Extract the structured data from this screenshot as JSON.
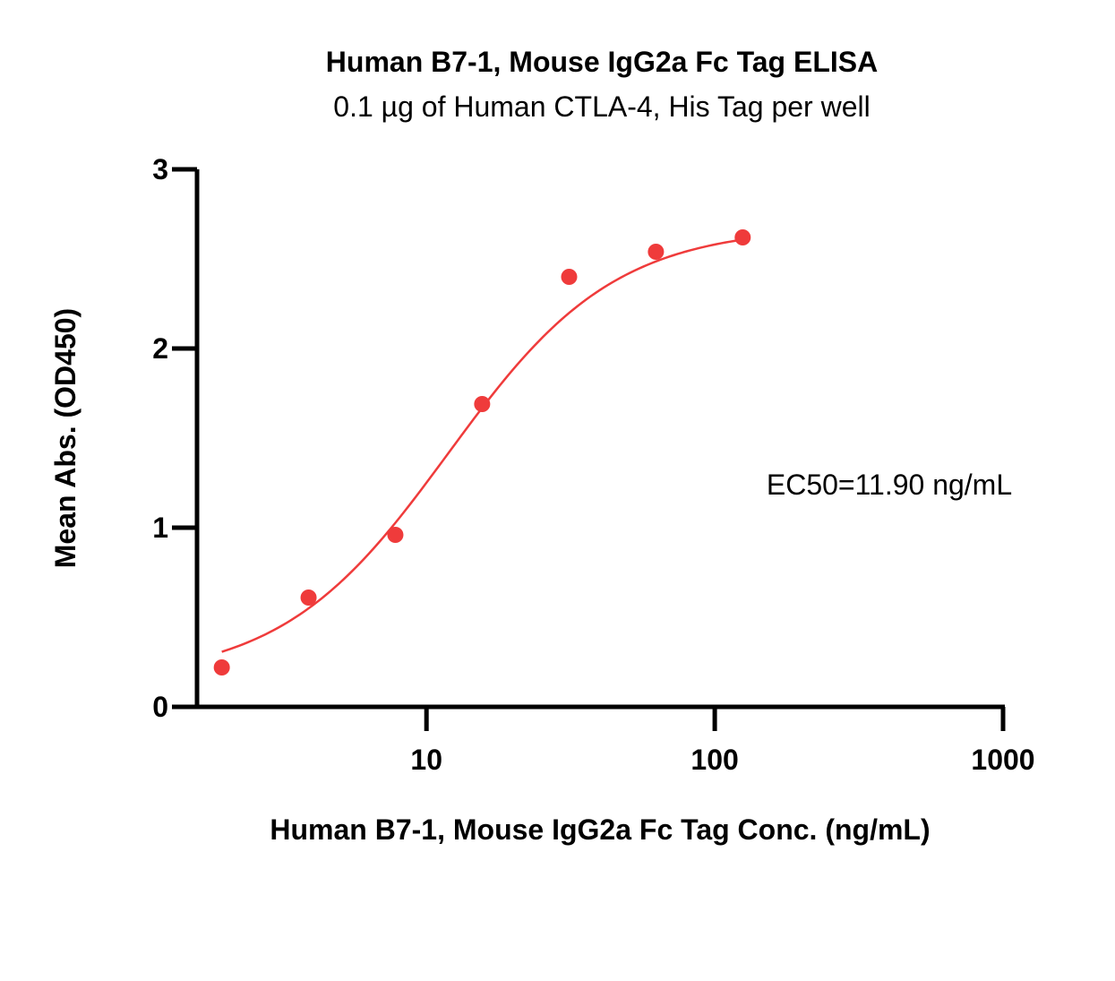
{
  "chart_data": {
    "type": "scatter",
    "title": "Human B7-1, Mouse IgG2a Fc Tag ELISA",
    "subtitle": "0.1 µg of Human CTLA-4, His Tag per well",
    "xlabel": "Human B7-1, Mouse IgG2a Fc Tag Conc. (ng/mL)",
    "ylabel": "Mean Abs. (OD450)",
    "xscale": "log",
    "xlim": [
      1.6,
      1000
    ],
    "ylim": [
      0,
      3
    ],
    "xticks": [
      10,
      100,
      1000
    ],
    "xtick_labels": [
      "10",
      "100",
      "1000"
    ],
    "yticks": [
      0,
      1,
      2,
      3
    ],
    "ytick_labels": [
      "0",
      "1",
      "2",
      "3"
    ],
    "grid": false,
    "series": [
      {
        "x": [
          1.95,
          3.9,
          7.8,
          15.6,
          31.25,
          62.5,
          125
        ],
        "y": [
          0.22,
          0.61,
          0.96,
          1.69,
          2.4,
          2.54,
          2.62
        ],
        "color": "#ef3b3b",
        "fit": {
          "model": "4PL",
          "bottom": 0.15,
          "top": 2.68,
          "ec50": 11.9,
          "hill": 1.5,
          "x_range": [
            1.95,
            125
          ]
        }
      }
    ],
    "annotations": [
      {
        "text": "EC50=11.90 ng/mL"
      }
    ]
  }
}
